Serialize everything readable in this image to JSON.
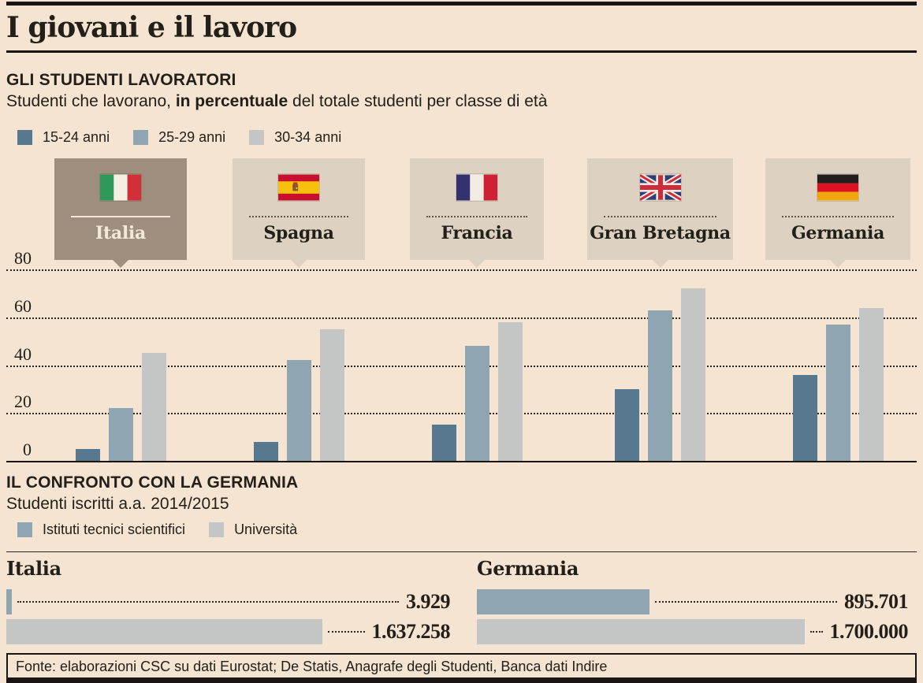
{
  "header": {
    "title": "I giovani e il lavoro"
  },
  "palette": {
    "background": "#f6e4d2",
    "ink": "#232019",
    "rule": "#1a1512",
    "bar_dark_blue": "#57788f",
    "bar_mid_blue": "#8fa5b2",
    "bar_light_gray": "#c3c6c5",
    "card_beige": "#ddd2c2",
    "card_highlight_taupe": "#9d8e7e",
    "card_highlight_text": "#f4e9d9"
  },
  "section1": {
    "title": "GLI STUDENTI LAVORATORI",
    "subtitle": {
      "pre": "Studenti che lavorano, ",
      "bold": "in percentuale",
      "post": " del totale studenti per classe di età"
    },
    "legend": [
      {
        "label": "15-24 anni",
        "color": "#57788f"
      },
      {
        "label": "25-29 anni",
        "color": "#8fa5b2"
      },
      {
        "label": "30-34 anni",
        "color": "#c3c6c5"
      }
    ],
    "countries": [
      {
        "name": "Italia",
        "flag": "flag-italy",
        "highlighted": true
      },
      {
        "name": "Spagna",
        "flag": "flag-spain",
        "highlighted": false
      },
      {
        "name": "Francia",
        "flag": "flag-france",
        "highlighted": false
      },
      {
        "name": "Gran Bretagna",
        "flag": "flag-uk",
        "highlighted": false
      },
      {
        "name": "Germania",
        "flag": "flag-germany",
        "highlighted": false
      }
    ]
  },
  "section2": {
    "title": "IL CONFRONTO CON LA GERMANIA",
    "subtitle": "Studenti iscritti a.a. 2014/2015",
    "legend": [
      {
        "label": "Istituti tecnici scientifici",
        "color": "#8fa5b2"
      },
      {
        "label": "Università",
        "color": "#c3c6c5"
      }
    ]
  },
  "footer": {
    "source": "Fonte: elaborazioni CSC su dati Eurostat; De Statis, Anagrafe degli Studenti, Banca dati Indire"
  },
  "chart_data": [
    {
      "type": "bar",
      "title": "GLI STUDENTI LAVORATORI",
      "subtitle": "Studenti che lavorano, in percentuale del totale studenti per classe di età",
      "categories": [
        "Italia",
        "Spagna",
        "Francia",
        "Gran Bretagna",
        "Germania"
      ],
      "series": [
        {
          "name": "15-24 anni",
          "values": [
            5,
            8,
            15,
            30,
            36
          ]
        },
        {
          "name": "25-29 anni",
          "values": [
            22,
            42,
            48,
            63,
            57
          ]
        },
        {
          "name": "30-34 anni",
          "values": [
            45,
            55,
            58,
            72,
            64
          ]
        }
      ],
      "ylim": [
        0,
        80
      ],
      "yticks": [
        0,
        20,
        40,
        60,
        80
      ],
      "grid": "horizontal-dotted",
      "legend_position": "top-left",
      "highlighted_category": "Italia",
      "values_estimated_from_gridlines": true
    },
    {
      "type": "bar-horizontal",
      "title": "IL CONFRONTO CON LA GERMANIA",
      "subtitle": "Studenti iscritti a.a. 2014/2015",
      "scale_max": 1700000,
      "groups": [
        {
          "label": "Italia",
          "bars": [
            {
              "series": "Istituti tecnici scientifici",
              "value": 3929,
              "display": "3.929"
            },
            {
              "series": "Università",
              "value": 1637258,
              "display": "1.637.258"
            }
          ]
        },
        {
          "label": "Germania",
          "bars": [
            {
              "series": "Istituti tecnici scientifici",
              "value": 895701,
              "display": "895.701"
            },
            {
              "series": "Università",
              "value": 1700000,
              "display": "1.700.000"
            }
          ]
        }
      ]
    }
  ]
}
